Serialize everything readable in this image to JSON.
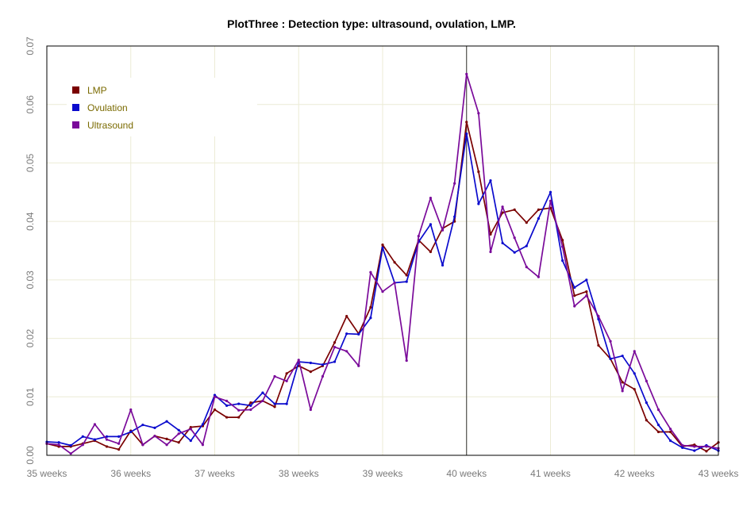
{
  "chart_data": {
    "type": "line",
    "title": "PlotThree : Detection type: ultrasound, ovulation, LMP.",
    "xlabel": "",
    "ylabel": "",
    "x_tick_labels": [
      "35 weeks",
      "36 weeks",
      "37 weeks",
      "38 weeks",
      "39 weeks",
      "40 weeks",
      "41 weeks",
      "42 weeks",
      "43 weeks"
    ],
    "xlim": [
      245,
      301
    ],
    "ylim": [
      0,
      0.07
    ],
    "y_ticks": [
      "0.00",
      "0.01",
      "0.02",
      "0.03",
      "0.04",
      "0.05",
      "0.06",
      "0.07"
    ],
    "reference_line_x": 280,
    "grid": true,
    "legend_position": "top-left",
    "series": [
      {
        "name": "LMP",
        "color": "#7a0000",
        "x": [
          245,
          246,
          247,
          248,
          249,
          250,
          251,
          252,
          253,
          254,
          255,
          256,
          257,
          258,
          259,
          260,
          261,
          262,
          263,
          264,
          265,
          266,
          267,
          268,
          269,
          270,
          271,
          272,
          273,
          274,
          275,
          276,
          277,
          278,
          279,
          280,
          281,
          282,
          283,
          284,
          285,
          286,
          287,
          288,
          289,
          290,
          291,
          292,
          293,
          294,
          295,
          296,
          297,
          298,
          299,
          300,
          301
        ],
        "values": [
          0.002,
          0.0015,
          0.0015,
          0.002,
          0.0025,
          0.0015,
          0.001,
          0.0042,
          0.0018,
          0.0033,
          0.0028,
          0.0022,
          0.0048,
          0.005,
          0.0078,
          0.0065,
          0.0065,
          0.009,
          0.0093,
          0.0083,
          0.014,
          0.0153,
          0.0143,
          0.0153,
          0.0193,
          0.0238,
          0.0208,
          0.0253,
          0.036,
          0.033,
          0.0308,
          0.0368,
          0.0348,
          0.0388,
          0.04,
          0.057,
          0.0485,
          0.0378,
          0.0415,
          0.042,
          0.0398,
          0.042,
          0.0423,
          0.0368,
          0.0273,
          0.028,
          0.0188,
          0.0165,
          0.0125,
          0.0113,
          0.006,
          0.004,
          0.004,
          0.0015,
          0.0018,
          0.0007,
          0.0022
        ]
      },
      {
        "name": "Ovulation",
        "color": "#0a0acd",
        "x": [
          245,
          246,
          247,
          248,
          249,
          250,
          251,
          252,
          253,
          254,
          255,
          256,
          257,
          258,
          259,
          260,
          261,
          262,
          263,
          264,
          265,
          266,
          267,
          268,
          269,
          270,
          271,
          272,
          273,
          274,
          275,
          276,
          277,
          278,
          279,
          280,
          281,
          282,
          283,
          284,
          285,
          286,
          287,
          288,
          289,
          290,
          291,
          292,
          293,
          294,
          295,
          296,
          297,
          298,
          299,
          300,
          301
        ],
        "values": [
          0.0023,
          0.0022,
          0.0017,
          0.0032,
          0.0027,
          0.0032,
          0.0032,
          0.004,
          0.0052,
          0.0047,
          0.0058,
          0.0043,
          0.0025,
          0.0053,
          0.0103,
          0.0085,
          0.0088,
          0.0085,
          0.0107,
          0.0088,
          0.0088,
          0.016,
          0.0158,
          0.0155,
          0.016,
          0.0208,
          0.0207,
          0.0235,
          0.0355,
          0.0295,
          0.0297,
          0.0365,
          0.0395,
          0.0325,
          0.0408,
          0.055,
          0.043,
          0.047,
          0.0363,
          0.0347,
          0.0358,
          0.0405,
          0.045,
          0.0333,
          0.0287,
          0.03,
          0.0233,
          0.0165,
          0.017,
          0.014,
          0.009,
          0.0052,
          0.0025,
          0.0013,
          0.0008,
          0.0017,
          0.0008
        ]
      },
      {
        "name": "Ultrasound",
        "color": "#7a0a9a",
        "x": [
          245,
          246,
          247,
          248,
          249,
          250,
          251,
          252,
          253,
          254,
          255,
          256,
          257,
          258,
          259,
          260,
          261,
          262,
          263,
          264,
          265,
          266,
          267,
          268,
          269,
          270,
          271,
          272,
          273,
          274,
          275,
          276,
          277,
          278,
          279,
          280,
          281,
          282,
          283,
          284,
          285,
          286,
          287,
          288,
          289,
          290,
          291,
          292,
          293,
          294,
          295,
          296,
          297,
          298,
          299,
          300,
          301
        ],
        "values": [
          0.002,
          0.0018,
          0.0003,
          0.0018,
          0.0053,
          0.0027,
          0.002,
          0.0078,
          0.0018,
          0.0033,
          0.0018,
          0.0037,
          0.0045,
          0.0018,
          0.01,
          0.0093,
          0.0077,
          0.0078,
          0.0093,
          0.0135,
          0.0127,
          0.0163,
          0.0078,
          0.0135,
          0.0185,
          0.0178,
          0.0153,
          0.0313,
          0.028,
          0.0295,
          0.0162,
          0.0375,
          0.044,
          0.0385,
          0.0465,
          0.0652,
          0.0585,
          0.0348,
          0.0425,
          0.0372,
          0.0322,
          0.0305,
          0.0435,
          0.0357,
          0.0255,
          0.0273,
          0.0238,
          0.0195,
          0.011,
          0.0178,
          0.0127,
          0.0078,
          0.0045,
          0.0017,
          0.0015,
          0.0015,
          0.0012
        ]
      }
    ]
  }
}
